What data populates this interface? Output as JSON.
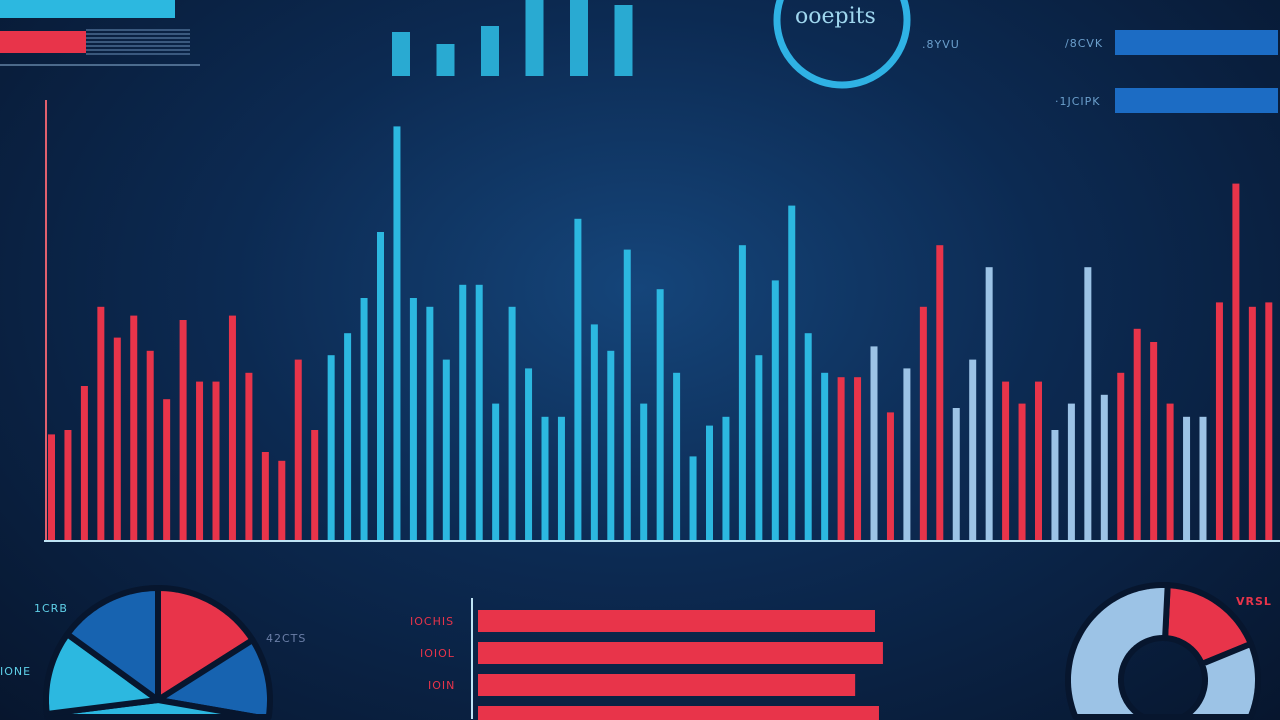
{
  "colors": {
    "red": "#e8344a",
    "cyan": "#2cb8e0",
    "lightblue": "#9cc3e6",
    "blue": "#1c6cc4",
    "darkblue": "#1763b0"
  },
  "labels": {
    "circle_text": "ooepits",
    "top_mid": ".8YVU",
    "top_right_1": "/8CVK",
    "top_right_2": "·1JCIPK",
    "pie_1": "1CRB",
    "pie_2": "42CTS",
    "pie_3": "IONE",
    "donut_1": "VRSL",
    "hbar_1": "IOCHIS",
    "hbar_2": "IOIOL",
    "hbar_3": "IOIN"
  },
  "chart_data": [
    {
      "type": "bar",
      "name": "main-chart",
      "legend": "none",
      "grid": false,
      "values": [
        24,
        25,
        35,
        53,
        46,
        51,
        43,
        32,
        50,
        36,
        36,
        51,
        38,
        20,
        18,
        41,
        25,
        42,
        47,
        55,
        70,
        94,
        55,
        53,
        41,
        58,
        58,
        31,
        53,
        39,
        28,
        28,
        73,
        49,
        43,
        66,
        31,
        57,
        38,
        19,
        26,
        28,
        67,
        42,
        59,
        76,
        47,
        38,
        37,
        37,
        44,
        29,
        39,
        53,
        67,
        30,
        41,
        62,
        36,
        31,
        36,
        25,
        31,
        62,
        33,
        38,
        48,
        45,
        31,
        28,
        28,
        54,
        81,
        53,
        54
      ],
      "colors": "rrrrrrrrrrrrrrrrrcccccccccccccccccccccccccccccccrrbrbrrbbbrrrbbbbrrrrbbrrrr"
    },
    {
      "type": "bar",
      "name": "top-bars",
      "values": [
        44,
        32,
        50,
        78,
        78,
        71
      ]
    },
    {
      "type": "bar",
      "orientation": "horizontal",
      "name": "top-left-bars",
      "values": [
        100,
        49
      ]
    },
    {
      "type": "bar",
      "orientation": "horizontal",
      "name": "top-right-bars",
      "values": [
        100,
        100
      ]
    },
    {
      "type": "bar",
      "orientation": "horizontal",
      "name": "bottom-bars",
      "values": [
        100,
        102,
        95,
        101
      ]
    },
    {
      "type": "pie",
      "name": "pie",
      "values": [
        16,
        17,
        40,
        12,
        15
      ],
      "slice_colors": [
        "red",
        "darkblue",
        "cyan",
        "cyan",
        "darkblue"
      ]
    },
    {
      "type": "pie",
      "name": "donut",
      "values": [
        18,
        82
      ],
      "slice_colors": [
        "red",
        "lightblue"
      ]
    },
    {
      "type": "gauge",
      "name": "ring",
      "value": 85
    }
  ]
}
